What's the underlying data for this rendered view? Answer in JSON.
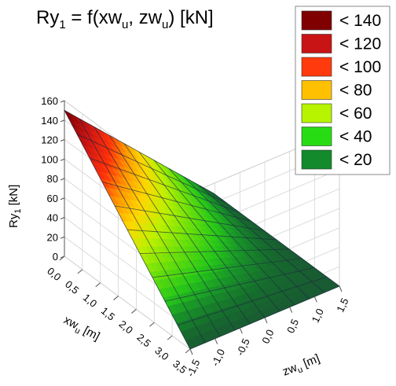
{
  "chart_data": {
    "type": "surface3d",
    "title_main": "Ry",
    "title_sub": "1",
    "title_rest": " = f(xw",
    "title_sub2": "u",
    "title_mid": ", zw",
    "title_sub3": "u",
    "title_end": ") [kN]",
    "zlabel_main": "Ry",
    "zlabel_sub": "1",
    "zlabel_rest": " [kN]",
    "xlabel_main": "xw",
    "xlabel_sub": "u",
    "xlabel_rest": " [m]",
    "ylabel_main": "zw",
    "ylabel_sub": "u",
    "ylabel_rest": " [m]",
    "x_ticks": [
      "0,0",
      "0,5",
      "1,0",
      "1,5",
      "2,0",
      "2,5",
      "3,0",
      "3,5"
    ],
    "x_tick_values": [
      0.0,
      0.5,
      1.0,
      1.5,
      2.0,
      2.5,
      3.0,
      3.5
    ],
    "y_ticks": [
      "-1,5",
      "-1,0",
      "-0,5",
      "0,0",
      "0,5",
      "1,0",
      "1,5"
    ],
    "y_tick_values": [
      -1.5,
      -1.0,
      -0.5,
      0.0,
      0.5,
      1.0,
      1.5
    ],
    "z_ticks": [
      "0",
      "20",
      "40",
      "60",
      "80",
      "100",
      "120",
      "140",
      "160"
    ],
    "z_tick_values": [
      0,
      20,
      40,
      60,
      80,
      100,
      120,
      140,
      160
    ],
    "xlim": [
      0,
      3.5
    ],
    "ylim": [
      -1.5,
      1.5
    ],
    "zlim": [
      0,
      160
    ],
    "surface_peak": {
      "x": 0.0,
      "y": -1.5,
      "z": 150
    },
    "surface_min": 0,
    "grid": true,
    "legend_position": "top-right",
    "legend": [
      {
        "label": "< 140",
        "color": "#800000"
      },
      {
        "label": "< 120",
        "color": "#c81414"
      },
      {
        "label": "< 100",
        "color": "#ff3a0c"
      },
      {
        "label": "< 80",
        "color": "#ffc000"
      },
      {
        "label": "< 60",
        "color": "#b6f400"
      },
      {
        "label": "< 40",
        "color": "#28dc14"
      },
      {
        "label": "< 20",
        "color": "#138a2c"
      }
    ]
  }
}
